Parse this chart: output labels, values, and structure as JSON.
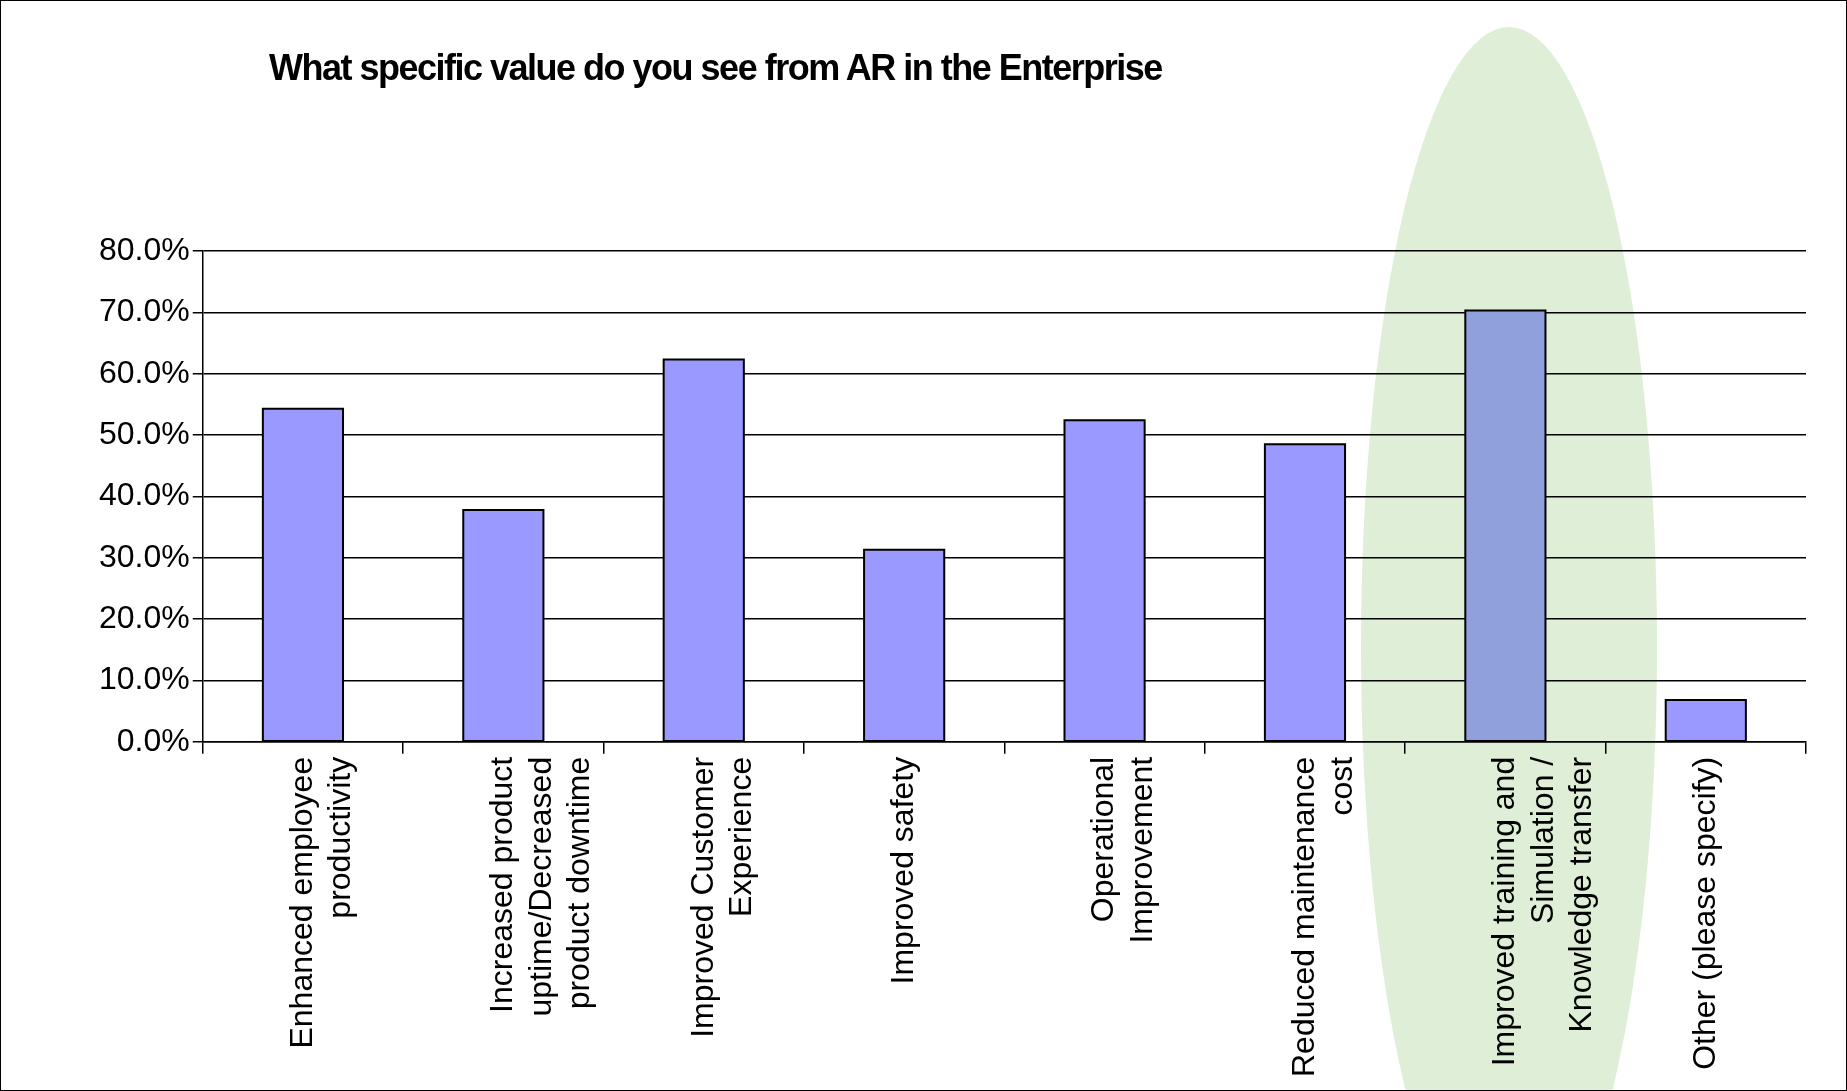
{
  "chart_data": {
    "type": "bar",
    "title": "What specific value do you see from AR in the Enterprise",
    "categories": [
      "Enhanced employee productivity",
      "Increased product uptime/Decreased product downtime",
      "Improved Customer Experience",
      "Improved safety",
      "Operational Improvement",
      "Reduced maintenance cost",
      "Improved training and Simulation / Knowledge transfer",
      "Other (please specify)"
    ],
    "values": [
      54.3,
      37.8,
      62.3,
      31.3,
      52.4,
      48.5,
      70.3,
      6.8
    ],
    "colors": [
      "#9999ff",
      "#9999ff",
      "#9999ff",
      "#9999ff",
      "#9999ff",
      "#9999ff",
      "#8fa0dd",
      "#9999ff"
    ],
    "ylim": [
      0,
      80
    ],
    "yticks": [
      {
        "value": 0,
        "label": "0.0%"
      },
      {
        "value": 10,
        "label": "10.0%"
      },
      {
        "value": 20,
        "label": "20.0%"
      },
      {
        "value": 30,
        "label": "30.0%"
      },
      {
        "value": 40,
        "label": "40.0%"
      },
      {
        "value": 50,
        "label": "50.0%"
      },
      {
        "value": 60,
        "label": "60.0%"
      },
      {
        "value": 70,
        "label": "70.0%"
      },
      {
        "value": 80,
        "label": "80.0%"
      }
    ],
    "grid": "y",
    "legend": false
  }
}
